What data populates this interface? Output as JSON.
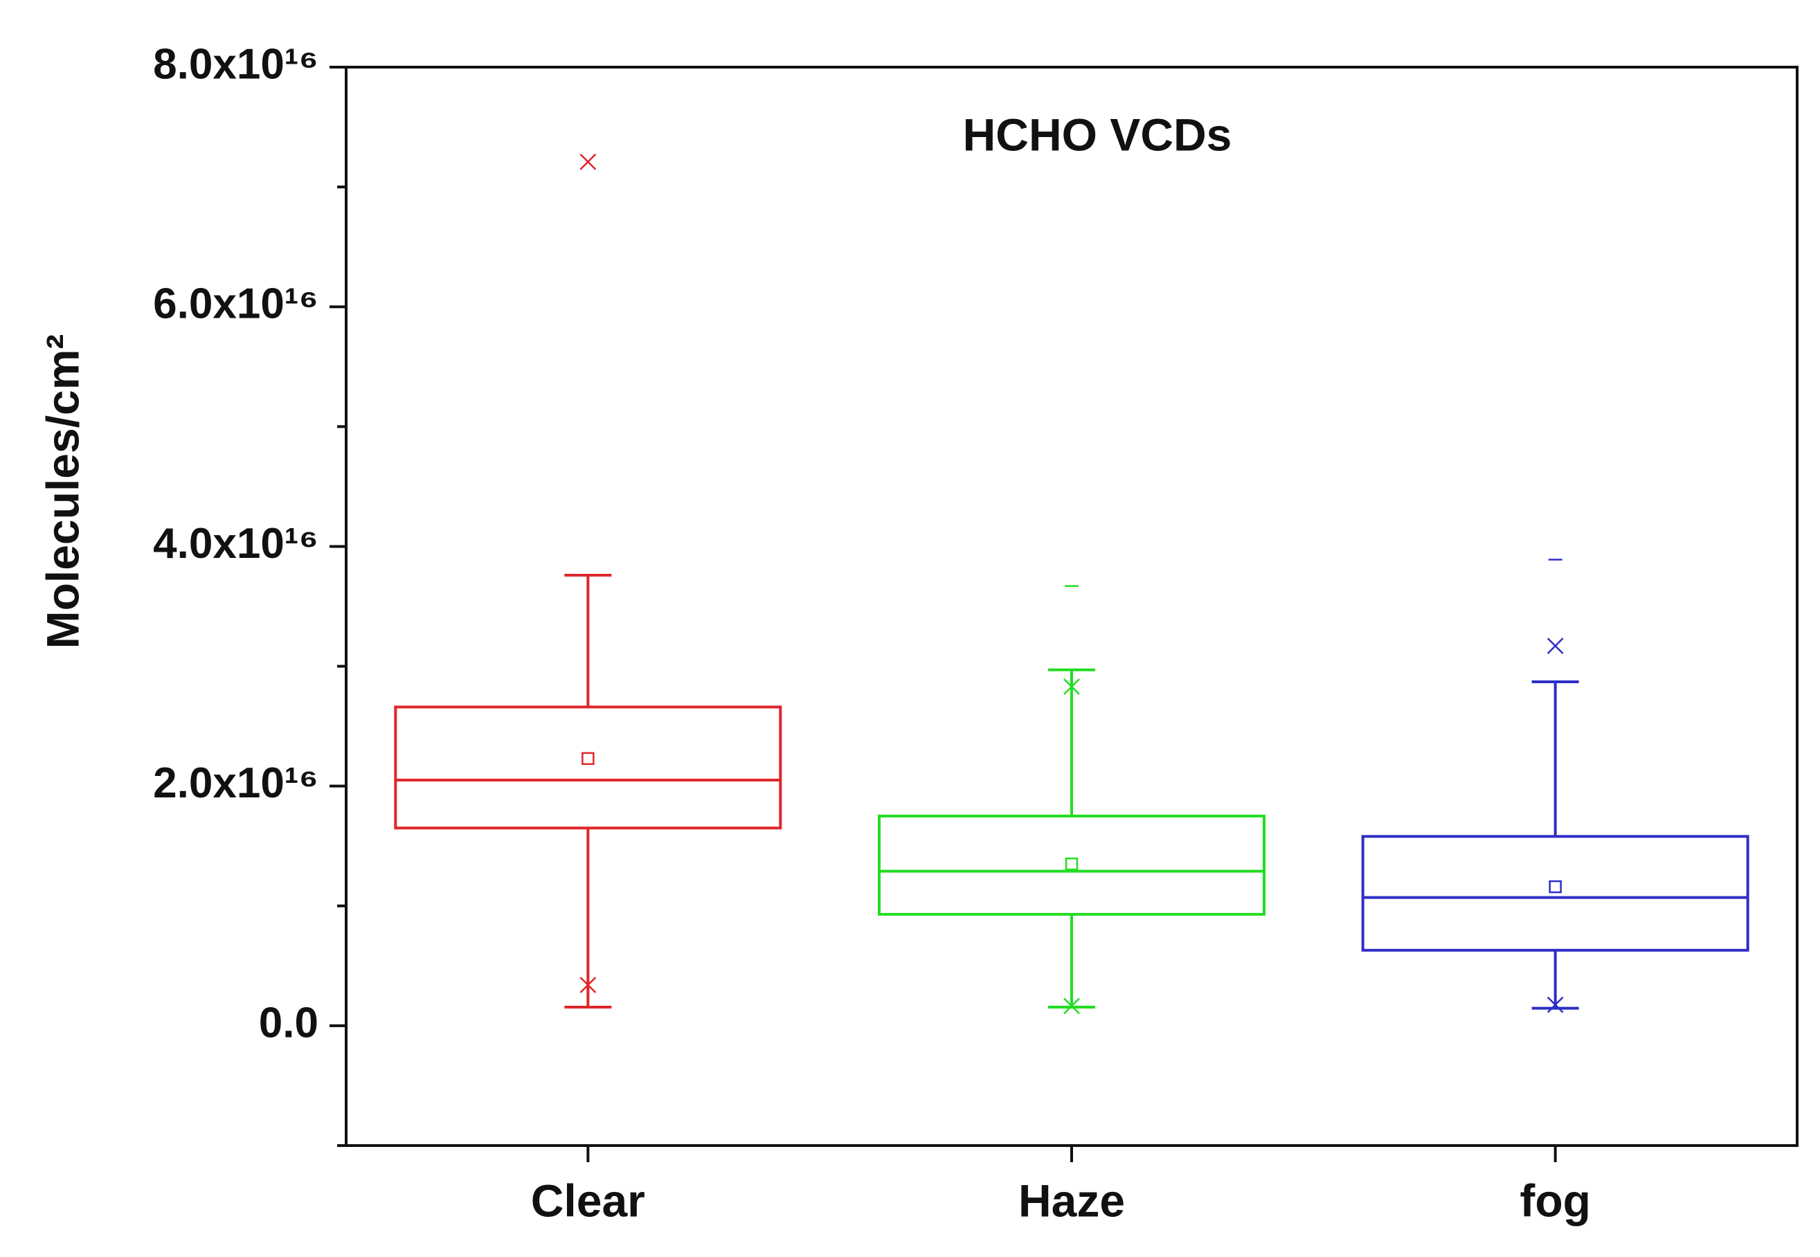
{
  "chart_data": {
    "type": "box",
    "title": "HCHO VCDs",
    "y_label": "Molecules/cm²",
    "categories": [
      "Clear",
      "Haze",
      "fog"
    ],
    "colors": [
      "#e0262b",
      "#22dd22",
      "#2e2ec8"
    ],
    "boxes": [
      {
        "whisker_low": 1550000000000000.0,
        "q1": 1.65e+16,
        "median": 2.05e+16,
        "q3": 2.66e+16,
        "whisker_high": 3.76e+16,
        "mean": 2.23e+16,
        "min": 3400000000000000.0,
        "max": 7.21e+16,
        "outliers": []
      },
      {
        "whisker_low": 1550000000000000.0,
        "q1": 9300000000000000.0,
        "median": 1.29e+16,
        "q3": 1.75e+16,
        "whisker_high": 2.97e+16,
        "mean": 1.35e+16,
        "min": 1650000000000000.0,
        "max": 2.83e+16,
        "outliers": [
          3.67e+16
        ]
      },
      {
        "whisker_low": 1460000000000000.0,
        "q1": 6300000000000000.0,
        "median": 1.07e+16,
        "q3": 1.58e+16,
        "whisker_high": 2.87e+16,
        "mean": 1.16e+16,
        "min": 1750000000000000.0,
        "max": 3.17e+16,
        "outliers": [
          3.89e+16
        ]
      }
    ],
    "ylim": [
      -1e+16,
      8e+16
    ],
    "yticks": [
      {
        "value": 0,
        "label": "0.0"
      },
      {
        "value": 2e+16,
        "label": "2.0x10¹⁶"
      },
      {
        "value": 4e+16,
        "label": "4.0x10¹⁶"
      },
      {
        "value": 6e+16,
        "label": "6.0x10¹⁶"
      },
      {
        "value": 8e+16,
        "label": "8.0x10¹⁶"
      }
    ],
    "minor_yticks": [
      -1e+16,
      1e+16,
      3e+16,
      5e+16,
      7e+16
    ]
  }
}
